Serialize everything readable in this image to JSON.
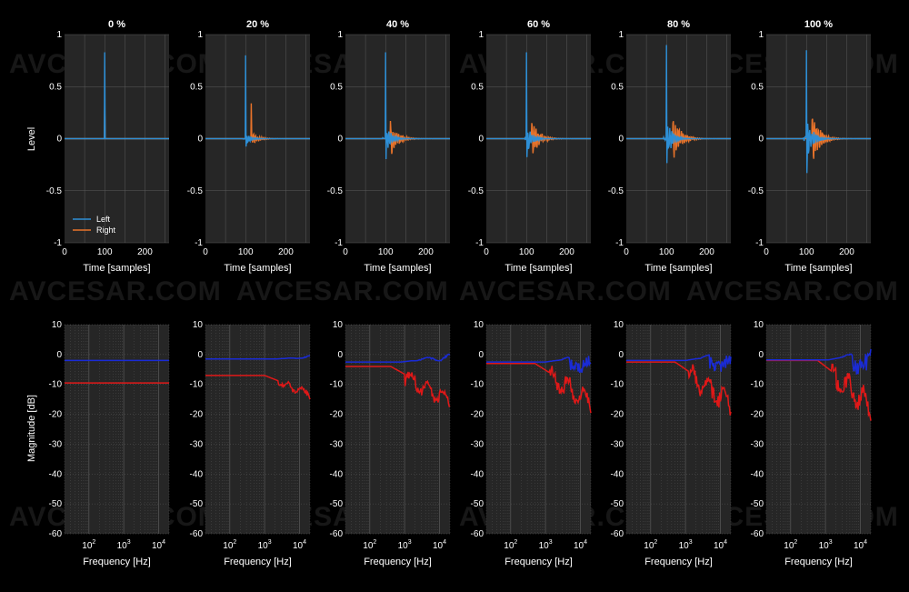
{
  "watermark": "AVCESAR.COM",
  "colors": {
    "background": "#000000",
    "plot_bg": "#262626",
    "grid": "#5a5a5a",
    "left_ir": "#2e8fd6",
    "right_ir": "#e8732a",
    "left_mag": "#1a2bd6",
    "right_mag": "#e01818"
  },
  "chart_data": [
    {
      "type": "line",
      "row": "impulse",
      "ylabel": "Level",
      "xlabel": "Time [samples]",
      "xlim": [
        0,
        260
      ],
      "ylim": [
        -1,
        1
      ],
      "xticks": [
        0,
        100,
        200
      ],
      "yticks": [
        -1,
        -0.5,
        0,
        0.5,
        1
      ],
      "ytick_labels": [
        "-1",
        "-0.5",
        "0",
        "0.5",
        "1"
      ],
      "legend": {
        "placement": "bottom-left",
        "entries": [
          "Left",
          "Right"
        ]
      },
      "panels": [
        {
          "title": "0 %",
          "left_peak": 0.83,
          "right_peak": 0.33,
          "right_delay": 0,
          "ringing": 0.0
        },
        {
          "title": "20 %",
          "left_peak": 0.8,
          "right_peak": 0.34,
          "right_delay": 14,
          "ringing": 0.2
        },
        {
          "title": "40 %",
          "left_peak": 0.83,
          "right_peak": 0.17,
          "right_delay": 12,
          "ringing": 0.5
        },
        {
          "title": "60 %",
          "left_peak": 0.83,
          "right_peak": 0.15,
          "right_delay": 13,
          "ringing": 0.6
        },
        {
          "title": "80 %",
          "left_peak": 0.9,
          "right_peak": 0.15,
          "right_delay": 16,
          "ringing": 0.75
        },
        {
          "title": "100 %",
          "left_peak": 0.85,
          "right_peak": 0.18,
          "right_delay": 14,
          "ringing": 0.9
        }
      ]
    },
    {
      "type": "line",
      "row": "magnitude",
      "ylabel": "Magnitude [dB]",
      "xlabel": "Frequency [Hz]",
      "xscale": "log",
      "xlim": [
        20,
        20000
      ],
      "ylim": [
        -60,
        10
      ],
      "xtick_labels": [
        {
          "base": "10",
          "exp": "2"
        },
        {
          "base": "10",
          "exp": "3"
        },
        {
          "base": "10",
          "exp": "4"
        }
      ],
      "yticks": [
        10,
        0,
        -10,
        -20,
        -30,
        -40,
        -50,
        -60
      ],
      "ytick_labels": [
        "10",
        "0",
        "-10",
        "-20",
        "-30",
        "-40",
        "-50",
        "-60"
      ],
      "series_names": [
        "Left",
        "Right"
      ],
      "panels": [
        {
          "title": "0 %",
          "left_flat": -2.0,
          "right_flat": -9.5,
          "rolloff_hz": 0,
          "ripple": 0.0
        },
        {
          "title": "20 %",
          "left_flat": -1.5,
          "right_flat": -7.0,
          "rolloff_hz": 1000,
          "ripple": 0.3
        },
        {
          "title": "40 %",
          "left_flat": -2.5,
          "right_flat": -4.0,
          "rolloff_hz": 400,
          "ripple": 0.6
        },
        {
          "title": "60 %",
          "left_flat": -2.5,
          "right_flat": -3.0,
          "rolloff_hz": 500,
          "ripple": 0.75
        },
        {
          "title": "80 %",
          "left_flat": -2.0,
          "right_flat": -2.5,
          "rolloff_hz": 500,
          "ripple": 0.85
        },
        {
          "title": "100 %",
          "left_flat": -1.8,
          "right_flat": -2.0,
          "rolloff_hz": 600,
          "ripple": 1.0
        }
      ]
    }
  ]
}
